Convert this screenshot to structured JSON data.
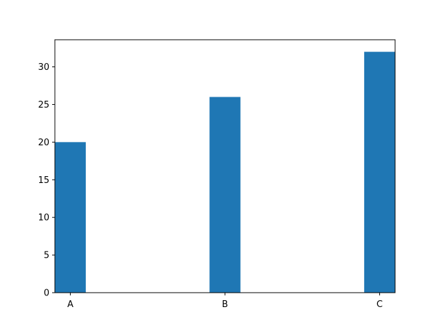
{
  "chart_data": {
    "type": "bar",
    "title": "",
    "xlabel": "",
    "ylabel": "",
    "categories": [
      "A",
      "B",
      "C"
    ],
    "values": [
      20,
      26,
      32
    ],
    "ylim": [
      0,
      33.6
    ],
    "yticks": [
      0,
      5,
      10,
      15,
      20,
      25,
      30
    ],
    "grid": false,
    "legend": "none",
    "colors": {
      "bar": "#1f77b4",
      "axis": "#000000"
    }
  }
}
